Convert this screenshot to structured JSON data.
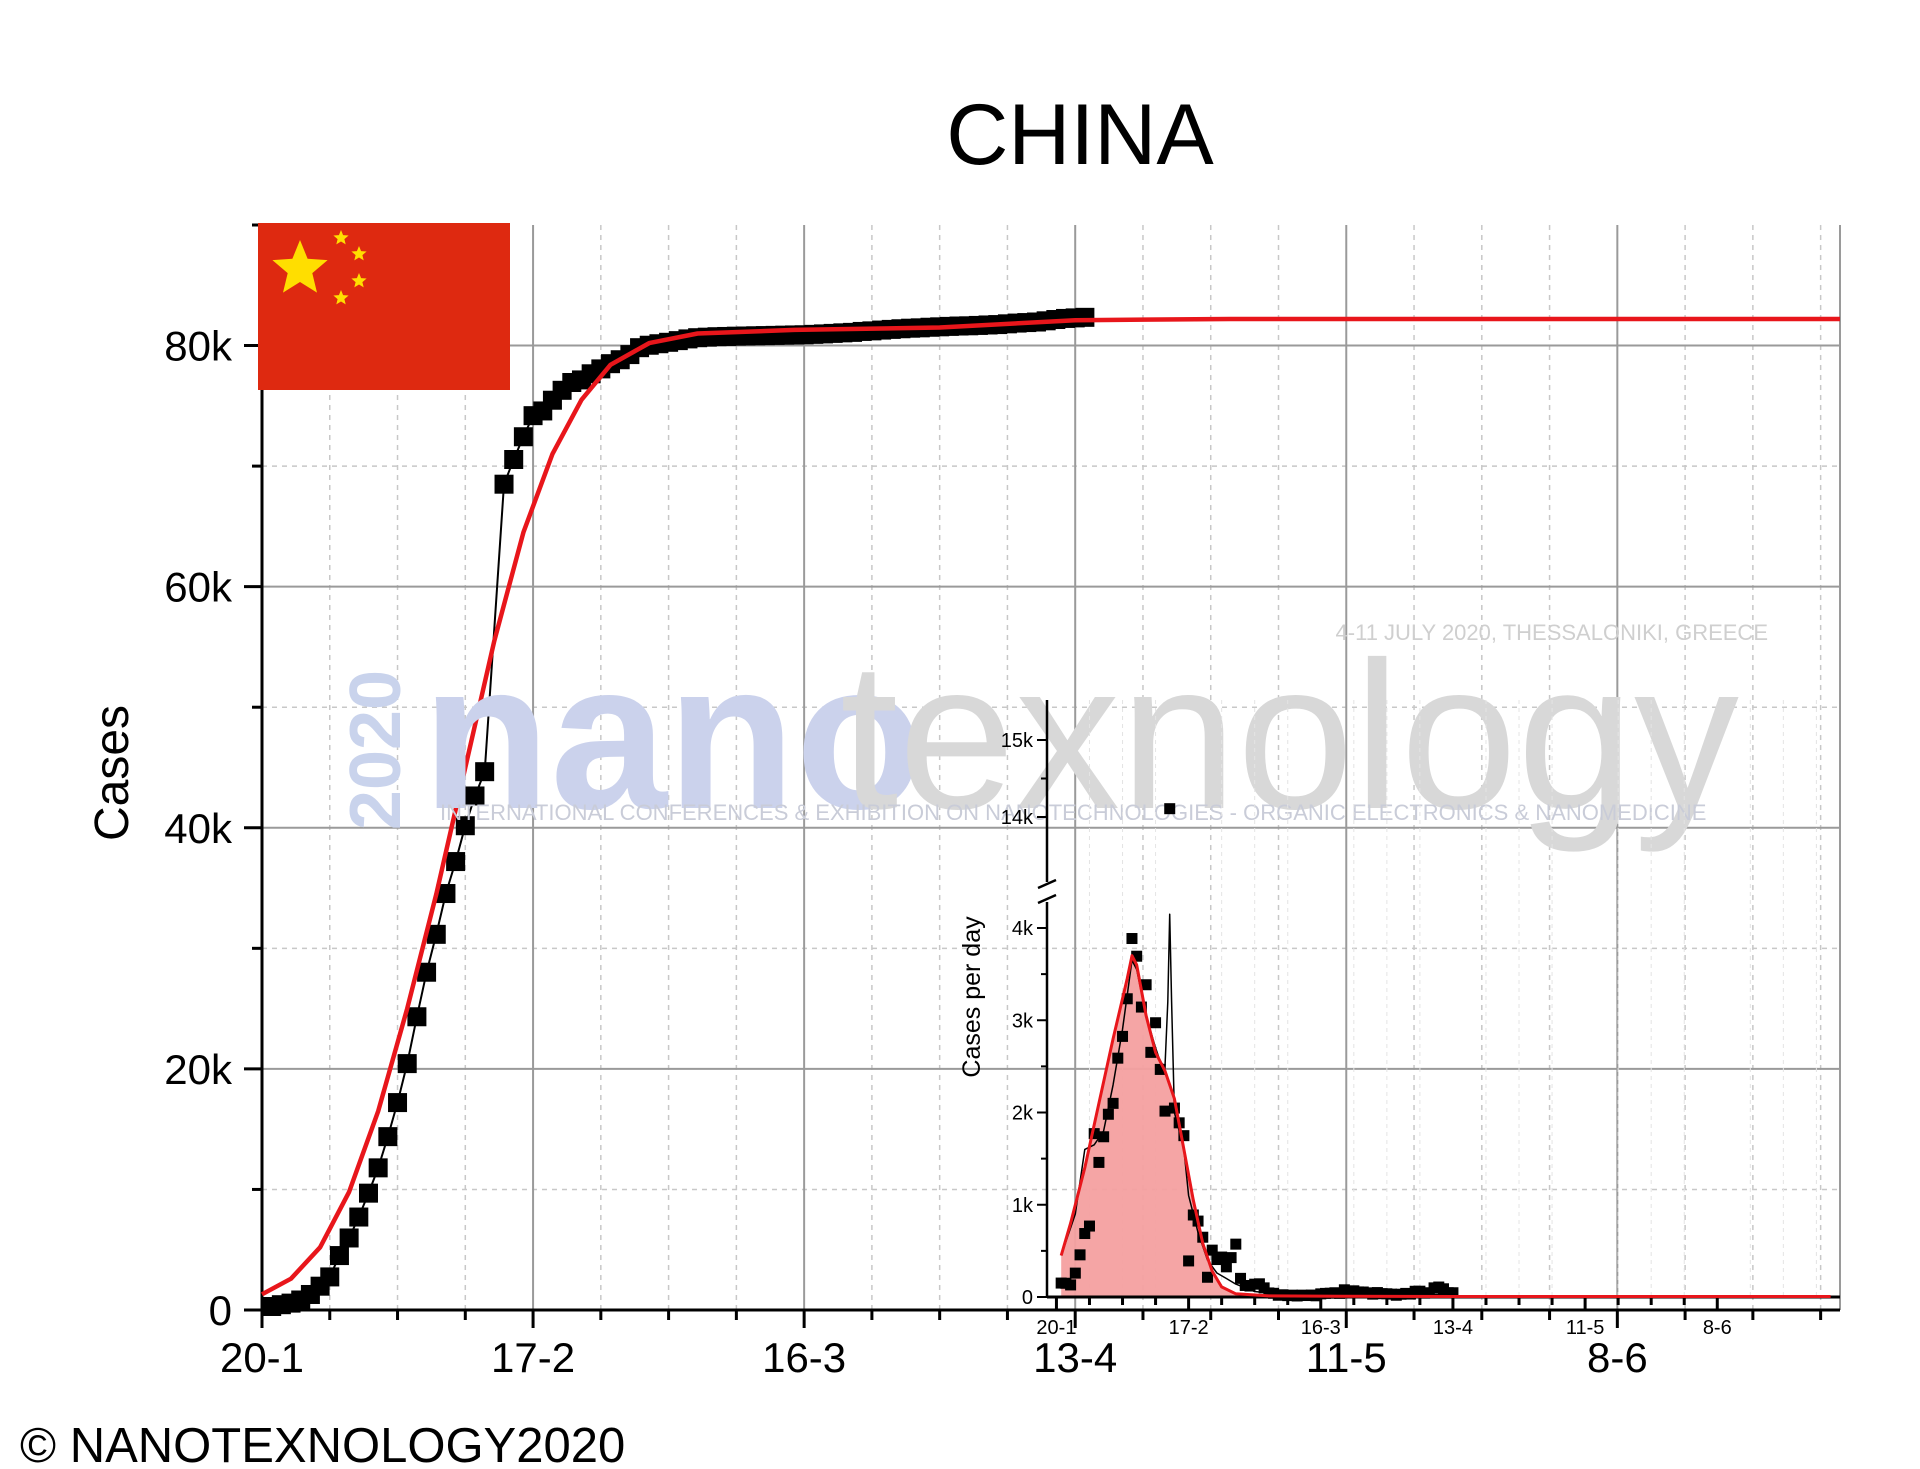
{
  "title": "CHINA",
  "copyright": "© NANOTEXNOLOGY2020",
  "flag": {
    "name": "china-flag",
    "field_color": "#DE2910",
    "star_color": "#FFDE00"
  },
  "watermark": {
    "year": "2020",
    "brand_nano": "nano",
    "brand_texnology": "texnology",
    "date_line": "4-11 JULY 2020, THESSALONIKI, GREECE",
    "tagline": "INTERNATIONAL CONFERENCES & EXHIBITION ON NANOTECHNOLOGIES - ORGANIC ELECTRONICS & NANOMEDICINE"
  },
  "chart_data": [
    {
      "name": "cumulative",
      "type": "scatter",
      "title": "CHINA",
      "xlabel": "",
      "ylabel": "Cases",
      "x_tick_labels": [
        "20-1",
        "17-2",
        "16-3",
        "13-4",
        "11-5",
        "8-6"
      ],
      "y_tick_labels": [
        "0",
        "20k",
        "40k",
        "60k",
        "80k"
      ],
      "x_ticks_day": [
        0,
        28,
        56,
        84,
        112,
        140
      ],
      "y_ticks": [
        0,
        20000,
        40000,
        60000,
        80000
      ],
      "xlim_day": [
        0,
        163
      ],
      "ylim": [
        0,
        90000
      ],
      "grid": true,
      "day0": "20-1",
      "points": [
        [
          1,
          291
        ],
        [
          2,
          440
        ],
        [
          3,
          571
        ],
        [
          4,
          830
        ],
        [
          5,
          1287
        ],
        [
          6,
          1975
        ],
        [
          7,
          2744
        ],
        [
          8,
          4515
        ],
        [
          9,
          5974
        ],
        [
          10,
          7711
        ],
        [
          11,
          9692
        ],
        [
          12,
          11791
        ],
        [
          13,
          14380
        ],
        [
          14,
          17205
        ],
        [
          15,
          20438
        ],
        [
          16,
          24324
        ],
        [
          17,
          28018
        ],
        [
          18,
          31161
        ],
        [
          19,
          34546
        ],
        [
          20,
          37198
        ],
        [
          21,
          40171
        ],
        [
          22,
          42638
        ],
        [
          23,
          44653
        ],
        [
          25,
          68500
        ],
        [
          26,
          70548
        ],
        [
          27,
          72436
        ],
        [
          28,
          74185
        ],
        [
          29,
          74576
        ],
        [
          30,
          75465
        ],
        [
          31,
          76288
        ],
        [
          32,
          76936
        ],
        [
          33,
          77150
        ],
        [
          34,
          77658
        ],
        [
          35,
          78064
        ],
        [
          36,
          78497
        ],
        [
          37,
          78824
        ],
        [
          38,
          79251
        ],
        [
          39,
          79824
        ],
        [
          40,
          80026
        ],
        [
          41,
          80151
        ],
        [
          42,
          80270
        ],
        [
          43,
          80409
        ],
        [
          44,
          80552
        ],
        [
          45,
          80651
        ],
        [
          46,
          80695
        ],
        [
          47,
          80735
        ],
        [
          48,
          80754
        ],
        [
          49,
          80778
        ],
        [
          50,
          80793
        ],
        [
          51,
          80813
        ],
        [
          52,
          80824
        ],
        [
          53,
          80844
        ],
        [
          54,
          80860
        ],
        [
          55,
          80881
        ],
        [
          56,
          80894
        ],
        [
          57,
          80928
        ],
        [
          58,
          80967
        ],
        [
          59,
          81008
        ],
        [
          60,
          81054
        ],
        [
          61,
          81093
        ],
        [
          62,
          81171
        ],
        [
          63,
          81218
        ],
        [
          64,
          81285
        ],
        [
          65,
          81340
        ],
        [
          66,
          81394
        ],
        [
          67,
          81439
        ],
        [
          68,
          81470
        ],
        [
          69,
          81518
        ],
        [
          70,
          81554
        ],
        [
          71,
          81589
        ],
        [
          72,
          81620
        ],
        [
          73,
          81639
        ],
        [
          74,
          81669
        ],
        [
          75,
          81708
        ],
        [
          76,
          81740
        ],
        [
          77,
          81802
        ],
        [
          78,
          81865
        ],
        [
          79,
          81907
        ],
        [
          80,
          81953
        ],
        [
          81,
          82052
        ],
        [
          82,
          82160
        ],
        [
          83,
          82249
        ],
        [
          84,
          82295
        ],
        [
          85,
          82341
        ]
      ],
      "fit": {
        "series_name": "",
        "color": "#E8161B",
        "points": [
          [
            0,
            1300
          ],
          [
            3,
            2600
          ],
          [
            6,
            5200
          ],
          [
            9,
            9800
          ],
          [
            12,
            16500
          ],
          [
            15,
            25000
          ],
          [
            18,
            34500
          ],
          [
            21,
            45000
          ],
          [
            24,
            55500
          ],
          [
            27,
            64500
          ],
          [
            30,
            71000
          ],
          [
            33,
            75500
          ],
          [
            36,
            78400
          ],
          [
            40,
            80200
          ],
          [
            45,
            81000
          ],
          [
            55,
            81300
          ],
          [
            70,
            81500
          ],
          [
            84,
            82100
          ],
          [
            100,
            82200
          ],
          [
            163,
            82200
          ]
        ]
      },
      "connect_line_color": "#000000"
    },
    {
      "name": "daily-inset",
      "type": "scatter",
      "xlabel": "",
      "ylabel": "Cases per day",
      "x_tick_labels": [
        "20-1",
        "17-2",
        "16-3",
        "13-4",
        "11-5",
        "8-6"
      ],
      "y_tick_labels_low": [
        "0",
        "1k",
        "2k",
        "3k",
        "4k"
      ],
      "y_tick_labels_high": [
        "14k",
        "15k"
      ],
      "y_ticks_low": [
        0,
        1000,
        2000,
        3000,
        4000
      ],
      "y_ticks_high": [
        14000,
        15000
      ],
      "y_break": [
        4300,
        13600
      ],
      "xlim_day": [
        -2,
        166
      ],
      "grid": true,
      "points": [
        [
          1,
          151
        ],
        [
          2,
          149
        ],
        [
          3,
          131
        ],
        [
          4,
          259
        ],
        [
          5,
          457
        ],
        [
          6,
          688
        ],
        [
          7,
          769
        ],
        [
          8,
          1771
        ],
        [
          9,
          1459
        ],
        [
          10,
          1737
        ],
        [
          11,
          1981
        ],
        [
          12,
          2099
        ],
        [
          13,
          2589
        ],
        [
          14,
          2825
        ],
        [
          15,
          3233
        ],
        [
          16,
          3886
        ],
        [
          17,
          3694
        ],
        [
          18,
          3143
        ],
        [
          19,
          3385
        ],
        [
          20,
          2652
        ],
        [
          21,
          2973
        ],
        [
          22,
          2467
        ],
        [
          23,
          2015
        ],
        [
          24,
          14108
        ],
        [
          25,
          2048
        ],
        [
          26,
          1888
        ],
        [
          27,
          1749
        ],
        [
          28,
          391
        ],
        [
          29,
          889
        ],
        [
          30,
          823
        ],
        [
          31,
          648
        ],
        [
          32,
          214
        ],
        [
          33,
          508
        ],
        [
          34,
          406
        ],
        [
          35,
          433
        ],
        [
          36,
          327
        ],
        [
          37,
          427
        ],
        [
          38,
          573
        ],
        [
          39,
          202
        ],
        [
          40,
          125
        ],
        [
          41,
          119
        ],
        [
          42,
          139
        ],
        [
          43,
          143
        ],
        [
          44,
          99
        ],
        [
          45,
          44
        ],
        [
          46,
          40
        ],
        [
          47,
          19
        ],
        [
          48,
          24
        ],
        [
          49,
          15
        ],
        [
          50,
          20
        ],
        [
          51,
          11
        ],
        [
          52,
          20
        ],
        [
          53,
          16
        ],
        [
          54,
          21
        ],
        [
          55,
          13
        ],
        [
          56,
          34
        ],
        [
          57,
          39
        ],
        [
          58,
          41
        ],
        [
          59,
          46
        ],
        [
          60,
          39
        ],
        [
          61,
          78
        ],
        [
          62,
          47
        ],
        [
          63,
          67
        ],
        [
          64,
          55
        ],
        [
          65,
          54
        ],
        [
          66,
          45
        ],
        [
          67,
          31
        ],
        [
          68,
          48
        ],
        [
          69,
          36
        ],
        [
          70,
          35
        ],
        [
          71,
          31
        ],
        [
          72,
          19
        ],
        [
          73,
          30
        ],
        [
          74,
          39
        ],
        [
          75,
          32
        ],
        [
          76,
          62
        ],
        [
          77,
          63
        ],
        [
          78,
          42
        ],
        [
          79,
          46
        ],
        [
          80,
          99
        ],
        [
          81,
          108
        ],
        [
          82,
          89
        ],
        [
          83,
          46
        ],
        [
          84,
          46
        ]
      ],
      "fit": {
        "series_name": "",
        "color": "#E8161B",
        "fill_color": "#F4A0A0",
        "points": [
          [
            1,
            450
          ],
          [
            3,
            800
          ],
          [
            6,
            1400
          ],
          [
            9,
            2100
          ],
          [
            12,
            2800
          ],
          [
            15,
            3450
          ],
          [
            16,
            3700
          ],
          [
            17,
            3600
          ],
          [
            19,
            3050
          ],
          [
            21,
            2650
          ],
          [
            23,
            2450
          ],
          [
            25,
            2150
          ],
          [
            27,
            1600
          ],
          [
            29,
            1050
          ],
          [
            31,
            580
          ],
          [
            33,
            280
          ],
          [
            35,
            110
          ],
          [
            38,
            35
          ],
          [
            45,
            12
          ],
          [
            60,
            8
          ],
          [
            84,
            5
          ],
          [
            164,
            5
          ]
        ]
      }
    }
  ]
}
